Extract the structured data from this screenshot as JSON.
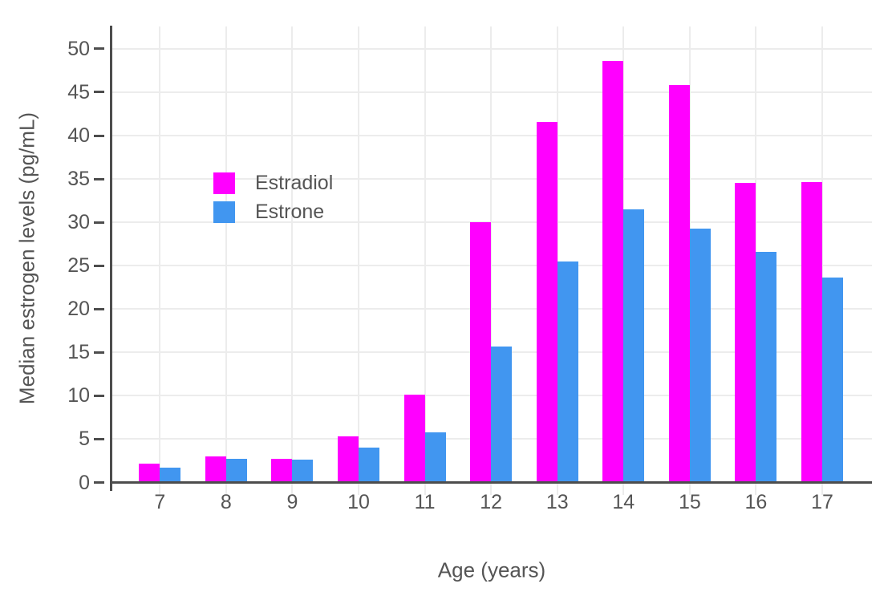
{
  "chart_data": {
    "type": "bar",
    "title": "",
    "xlabel": "Age (years)",
    "ylabel": "Median estrogen levels (pg/mL)",
    "categories": [
      "7",
      "8",
      "9",
      "10",
      "11",
      "12",
      "13",
      "14",
      "15",
      "16",
      "17"
    ],
    "series": [
      {
        "name": "Estradiol",
        "color": "#FF00FF",
        "values": [
          2.2,
          3.0,
          2.7,
          5.3,
          10.1,
          30.0,
          41.6,
          48.6,
          45.8,
          34.5,
          34.6
        ]
      },
      {
        "name": "Estrone",
        "color": "#4196F0",
        "values": [
          1.7,
          2.7,
          2.6,
          4.0,
          5.8,
          15.7,
          25.5,
          31.5,
          29.3,
          26.6,
          23.6
        ]
      }
    ],
    "yticks": [
      0,
      5,
      10,
      15,
      20,
      25,
      30,
      35,
      40,
      45,
      50
    ],
    "ylim": [
      0,
      52.5
    ],
    "grid": true,
    "legend_position": "upper-left-inside",
    "bar_mode": "grouped"
  },
  "style": {
    "background": "#FFFFFF",
    "text_color": "#555555",
    "axis_color": "#4D4D4D",
    "grid_color": "#ECECEC"
  }
}
